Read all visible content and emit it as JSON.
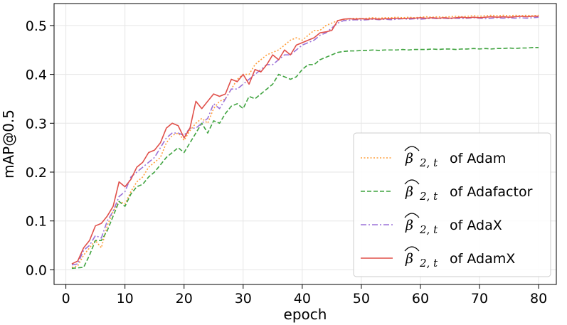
{
  "chart_data": {
    "type": "line",
    "xlabel": "epoch",
    "ylabel": "mAP@0.5",
    "xlim": [
      -2,
      83
    ],
    "ylim": [
      -0.03,
      0.545
    ],
    "xticks": [
      0,
      10,
      20,
      30,
      40,
      50,
      60,
      70,
      80
    ],
    "yticks": [
      0.0,
      0.1,
      0.2,
      0.3,
      0.4,
      0.5
    ],
    "grid": true,
    "legend_position": "lower-right",
    "x": [
      1,
      2,
      3,
      4,
      5,
      6,
      7,
      8,
      9,
      10,
      11,
      12,
      13,
      14,
      15,
      16,
      17,
      18,
      19,
      20,
      21,
      22,
      23,
      24,
      25,
      26,
      27,
      28,
      29,
      30,
      31,
      32,
      33,
      34,
      35,
      36,
      37,
      38,
      39,
      40,
      41,
      42,
      43,
      44,
      45,
      46,
      47,
      48,
      49,
      50,
      51,
      52,
      53,
      54,
      55,
      56,
      57,
      58,
      59,
      60,
      61,
      62,
      63,
      64,
      65,
      66,
      67,
      68,
      69,
      70,
      71,
      72,
      73,
      74,
      75,
      76,
      77,
      78,
      79,
      80
    ],
    "series": [
      {
        "symbol": "β",
        "subscript": "2, t",
        "name_suffix": "of Adam",
        "color": "#ff9f3c",
        "dash": "2,2.5",
        "values": [
          0.005,
          0.008,
          0.03,
          0.045,
          0.06,
          0.045,
          0.09,
          0.12,
          0.14,
          0.135,
          0.16,
          0.18,
          0.19,
          0.21,
          0.22,
          0.23,
          0.26,
          0.275,
          0.28,
          0.265,
          0.285,
          0.3,
          0.31,
          0.3,
          0.33,
          0.345,
          0.35,
          0.37,
          0.39,
          0.4,
          0.4,
          0.42,
          0.43,
          0.44,
          0.445,
          0.45,
          0.46,
          0.47,
          0.475,
          0.47,
          0.48,
          0.49,
          0.49,
          0.5,
          0.505,
          0.51,
          0.512,
          0.514,
          0.515,
          0.514,
          0.515,
          0.516,
          0.515,
          0.516,
          0.516,
          0.517,
          0.516,
          0.517,
          0.516,
          0.517,
          0.518,
          0.517,
          0.518,
          0.517,
          0.518,
          0.519,
          0.518,
          0.519,
          0.52,
          0.519,
          0.52,
          0.521,
          0.52,
          0.521,
          0.52,
          0.521,
          0.52,
          0.521,
          0.52,
          0.521
        ]
      },
      {
        "symbol": "β",
        "subscript": "2, t",
        "name_suffix": "of Adafactor",
        "color": "#3fa33f",
        "dash": "6,3",
        "values": [
          0.003,
          0.004,
          0.005,
          0.03,
          0.06,
          0.06,
          0.08,
          0.11,
          0.14,
          0.13,
          0.155,
          0.17,
          0.175,
          0.19,
          0.2,
          0.215,
          0.23,
          0.24,
          0.25,
          0.24,
          0.26,
          0.28,
          0.3,
          0.28,
          0.305,
          0.3,
          0.32,
          0.335,
          0.34,
          0.33,
          0.355,
          0.35,
          0.36,
          0.37,
          0.38,
          0.4,
          0.395,
          0.39,
          0.395,
          0.41,
          0.42,
          0.42,
          0.43,
          0.435,
          0.44,
          0.445,
          0.447,
          0.448,
          0.448,
          0.449,
          0.449,
          0.45,
          0.449,
          0.45,
          0.45,
          0.45,
          0.451,
          0.45,
          0.451,
          0.451,
          0.451,
          0.452,
          0.451,
          0.452,
          0.452,
          0.451,
          0.452,
          0.452,
          0.453,
          0.452,
          0.453,
          0.452,
          0.453,
          0.453,
          0.454,
          0.453,
          0.454,
          0.454,
          0.455,
          0.455
        ]
      },
      {
        "symbol": "β",
        "subscript": "2, t",
        "name_suffix": "of AdaX",
        "color": "#9b72d8",
        "dash": "8,3,2,3",
        "values": [
          0.01,
          0.012,
          0.04,
          0.05,
          0.07,
          0.065,
          0.1,
          0.12,
          0.15,
          0.16,
          0.19,
          0.2,
          0.21,
          0.22,
          0.23,
          0.25,
          0.27,
          0.28,
          0.28,
          0.275,
          0.29,
          0.29,
          0.3,
          0.31,
          0.34,
          0.33,
          0.35,
          0.37,
          0.37,
          0.38,
          0.39,
          0.4,
          0.41,
          0.42,
          0.42,
          0.43,
          0.44,
          0.44,
          0.45,
          0.46,
          0.465,
          0.47,
          0.48,
          0.485,
          0.495,
          0.505,
          0.51,
          0.511,
          0.512,
          0.511,
          0.512,
          0.513,
          0.512,
          0.513,
          0.512,
          0.513,
          0.514,
          0.513,
          0.514,
          0.513,
          0.514,
          0.515,
          0.514,
          0.515,
          0.514,
          0.515,
          0.514,
          0.515,
          0.516,
          0.515,
          0.514,
          0.515,
          0.516,
          0.515,
          0.516,
          0.515,
          0.516,
          0.515,
          0.516,
          0.517
        ]
      },
      {
        "symbol": "β",
        "subscript": "2, t",
        "name_suffix": "of AdamX",
        "color": "#e0504a",
        "dash": "",
        "values": [
          0.012,
          0.018,
          0.045,
          0.06,
          0.09,
          0.095,
          0.11,
          0.13,
          0.18,
          0.17,
          0.185,
          0.21,
          0.22,
          0.24,
          0.245,
          0.26,
          0.29,
          0.3,
          0.295,
          0.27,
          0.29,
          0.345,
          0.33,
          0.345,
          0.36,
          0.355,
          0.36,
          0.39,
          0.385,
          0.4,
          0.38,
          0.41,
          0.405,
          0.42,
          0.44,
          0.43,
          0.45,
          0.44,
          0.46,
          0.465,
          0.47,
          0.475,
          0.485,
          0.487,
          0.49,
          0.51,
          0.513,
          0.514,
          0.513,
          0.514,
          0.513,
          0.514,
          0.513,
          0.514,
          0.514,
          0.515,
          0.514,
          0.515,
          0.515,
          0.516,
          0.515,
          0.516,
          0.515,
          0.516,
          0.515,
          0.516,
          0.517,
          0.516,
          0.517,
          0.516,
          0.517,
          0.518,
          0.517,
          0.518,
          0.517,
          0.518,
          0.519,
          0.518,
          0.519,
          0.519
        ]
      }
    ]
  }
}
